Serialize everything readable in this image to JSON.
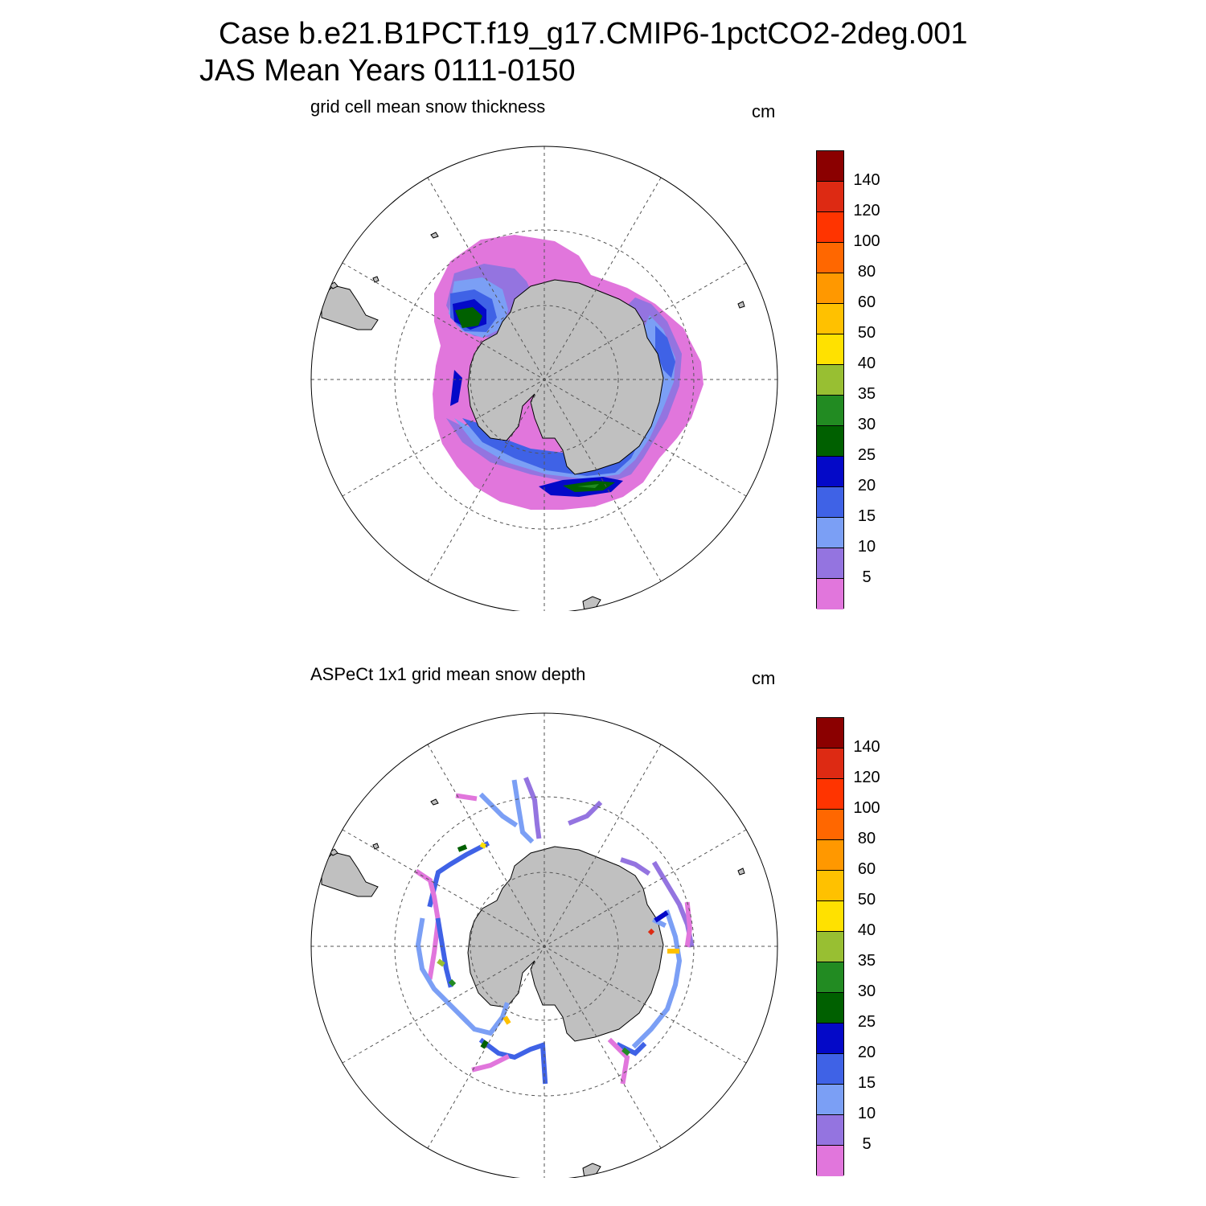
{
  "header": {
    "title_line1": "Case b.e21.B1PCT.f19_g17.CMIP6-1pctCO2-2deg.001",
    "title_line2": "JAS Mean   Years 0111-0150"
  },
  "panels": [
    {
      "title": "grid cell mean snow thickness",
      "units": "cm"
    },
    {
      "title": "ASPeCt 1x1 grid mean snow depth",
      "units": "cm"
    }
  ],
  "colorbar": {
    "colors": [
      "#e176dc",
      "#9474e0",
      "#7b9ff5",
      "#3f62e6",
      "#0409c8",
      "#006000",
      "#228b22",
      "#98bf32",
      "#ffe100",
      "#ffc100",
      "#ff9800",
      "#ff6700",
      "#ff3400",
      "#dd2a13",
      "#8b0000"
    ],
    "labels": [
      "5",
      "10",
      "15",
      "20",
      "25",
      "30",
      "35",
      "40",
      "50",
      "60",
      "80",
      "100",
      "120",
      "140"
    ]
  },
  "map_colors": {
    "land": "#c0c0c0",
    "grid": "#555555"
  }
}
